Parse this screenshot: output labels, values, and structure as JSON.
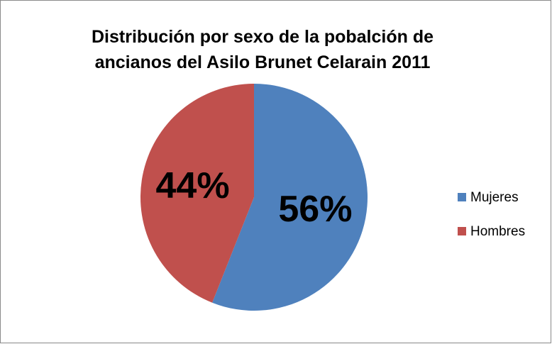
{
  "chart_data": {
    "type": "pie",
    "title": "Distribución por sexo de la pobalción de ancianos del Asilo Brunet Celarain 2011",
    "categories": [
      "Mujeres",
      "Hombres"
    ],
    "values": [
      56,
      44
    ],
    "value_labels": [
      "56%",
      "44%"
    ],
    "colors": [
      "#4f81bd",
      "#c0504d"
    ],
    "legend": "right"
  }
}
